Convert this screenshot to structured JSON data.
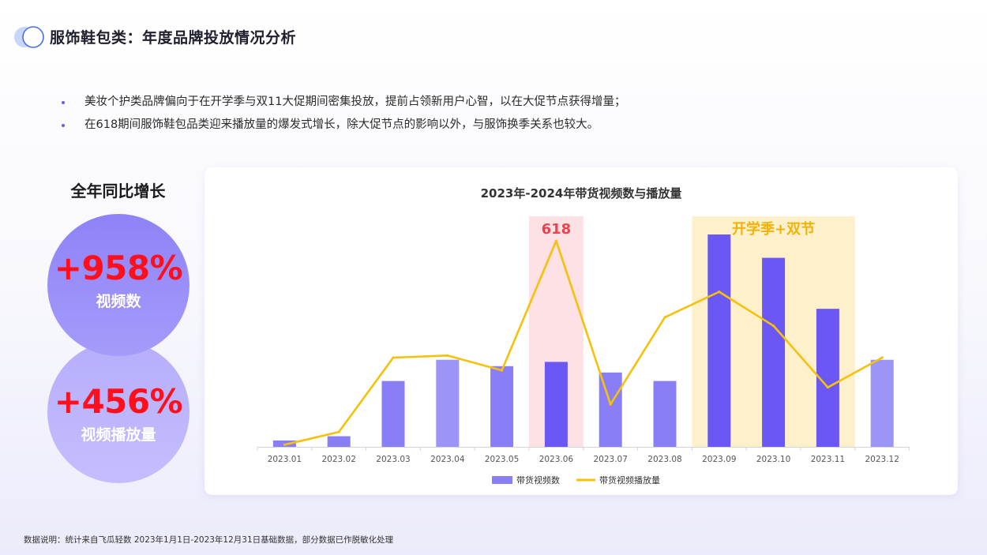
{
  "header": {
    "title": "服饰鞋包类：年度品牌投放情况分析"
  },
  "bullets": [
    "美妆个护类品牌偏向于在开学季与双11大促期间密集投放，提前占领新用户心智，以在大促节点获得增量；",
    "在618期间服饰鞋包品类迎来播放量的爆发式增长，除大促节点的影响以外，与服饰换季关系也较大。"
  ],
  "kpi": {
    "title": "全年同比增长",
    "items": [
      {
        "value": "+958%",
        "label": "视频数"
      },
      {
        "value": "+456%",
        "label": "视频播放量"
      }
    ]
  },
  "chart_data": {
    "type": "bar",
    "title": "2023年-2024年带货视频数与播放量",
    "categories": [
      "2023.01",
      "2023.02",
      "2023.03",
      "2023.04",
      "2023.05",
      "2023.06",
      "2023.07",
      "2023.08",
      "2023.09",
      "2023.10",
      "2023.11",
      "2023.12"
    ],
    "series": [
      {
        "name": "带货视频数",
        "type": "bar",
        "values": [
          3,
          5,
          31,
          41,
          38,
          40,
          35,
          31,
          100,
          89,
          65,
          41
        ]
      },
      {
        "name": "带货视频播放量",
        "type": "line",
        "values": [
          1,
          7,
          42,
          43,
          36,
          97,
          20,
          61,
          73,
          57,
          28,
          42
        ]
      }
    ],
    "bar_colors": [
      "#8a7ef6",
      "#8a7ef6",
      "#8a7ef6",
      "#9d94f8",
      "#8a7ef6",
      "#6a57f4",
      "#8a7ef6",
      "#8a7ef6",
      "#6a57f4",
      "#6a57f4",
      "#6a57f4",
      "#9d94f8"
    ],
    "line_color": "#f5c10a",
    "bar_legend_color": "#8a7ef6",
    "highlights": [
      {
        "label": "618",
        "from": 5,
        "to": 5,
        "color": "#fde1e5",
        "label_color": "#e8434f"
      },
      {
        "label": "开学季+双节",
        "from": 8,
        "to": 10,
        "color": "#fdf0cb",
        "label_color": "#f2b208"
      }
    ],
    "ylim": [
      0,
      100
    ],
    "legend_position": "bottom",
    "grid": false
  },
  "footnote": "数据说明：统计来自飞瓜轻数 2023年1月1日-2023年12月31日基础数据，部分数据已作脱敏化处理"
}
